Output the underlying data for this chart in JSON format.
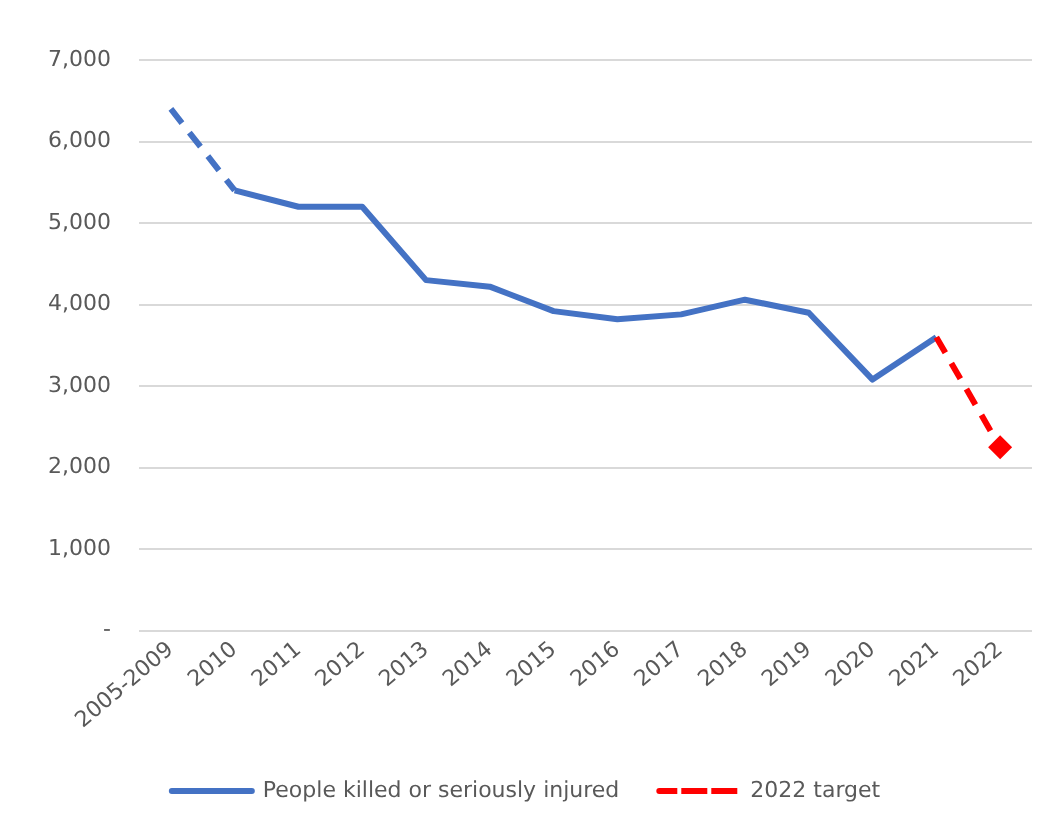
{
  "chart_data": {
    "type": "line",
    "categories": [
      "2005-2009",
      "2010",
      "2011",
      "2012",
      "2013",
      "2014",
      "2015",
      "2016",
      "2017",
      "2018",
      "2019",
      "2020",
      "2021",
      "2022"
    ],
    "series": [
      {
        "color": "#4472c4",
        "line_style": "dashed",
        "marker": "none",
        "values": [
          6400,
          5400,
          null,
          null,
          null,
          null,
          null,
          null,
          null,
          null,
          null,
          null,
          null,
          null
        ]
      },
      {
        "name": "People killed or seriously injured",
        "color": "#4472c4",
        "line_style": "solid",
        "marker": "none",
        "values": [
          null,
          5400,
          5200,
          5200,
          4300,
          4220,
          3920,
          3820,
          3880,
          4060,
          3900,
          3080,
          3600,
          null
        ]
      },
      {
        "name": "2022 target",
        "color": "#ff0000",
        "line_style": "dashed",
        "marker": "diamond",
        "values": [
          null,
          null,
          null,
          null,
          null,
          null,
          null,
          null,
          null,
          null,
          null,
          null,
          3600,
          2250
        ]
      }
    ],
    "ylim": [
      0,
      7000
    ],
    "yticks": [
      {
        "value": 0,
        "label": "-"
      },
      {
        "value": 1000,
        "label": "1,000"
      },
      {
        "value": 2000,
        "label": "2,000"
      },
      {
        "value": 3000,
        "label": "3,000"
      },
      {
        "value": 4000,
        "label": "4,000"
      },
      {
        "value": 5000,
        "label": "5,000"
      },
      {
        "value": 6000,
        "label": "6,000"
      },
      {
        "value": 7000,
        "label": "7,000"
      }
    ],
    "grid": "y",
    "legend": "bottom"
  }
}
